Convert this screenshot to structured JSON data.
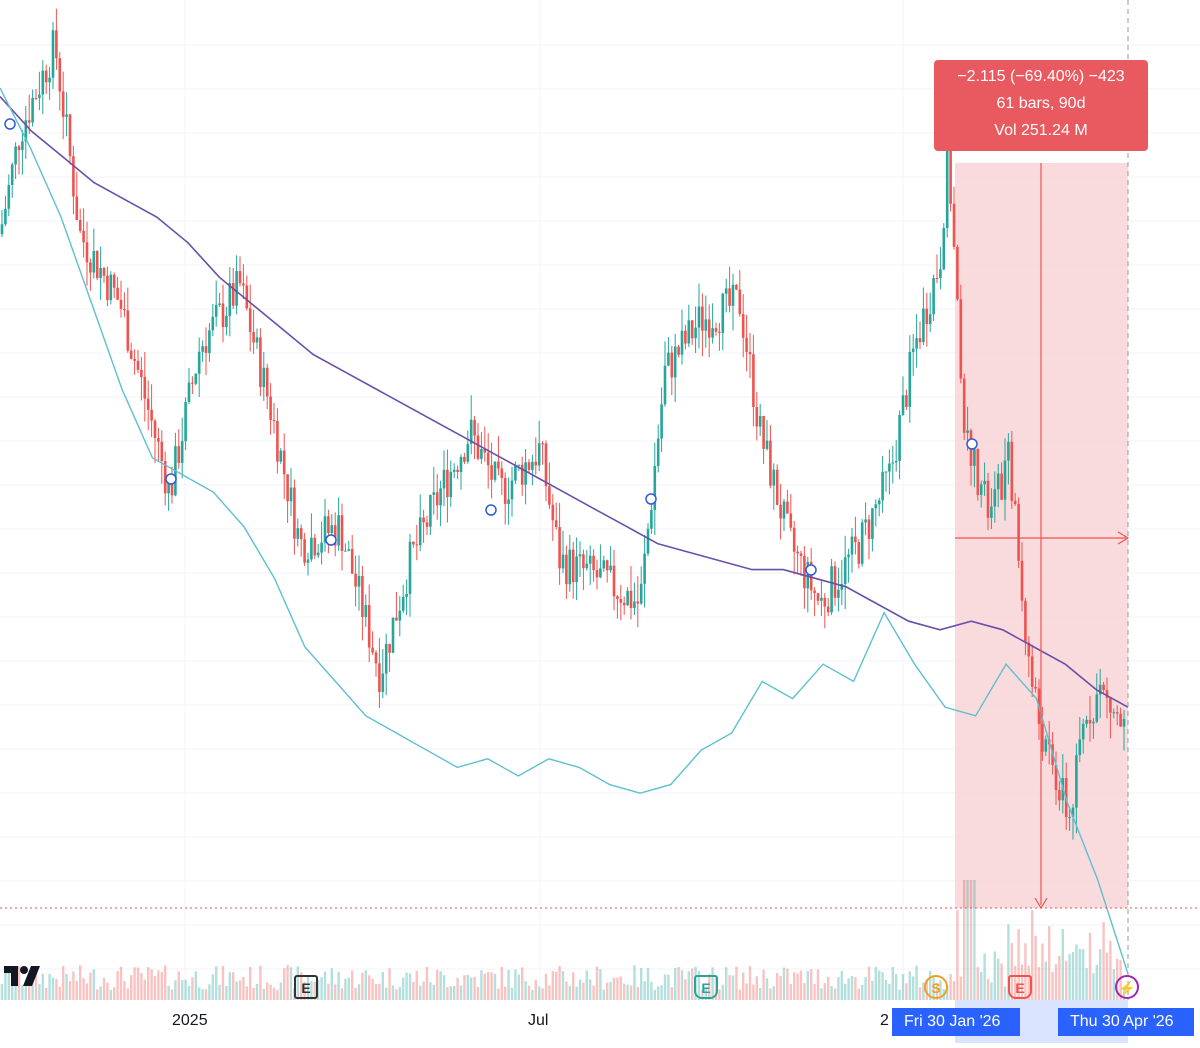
{
  "measure": {
    "line1": "−2.115 (−69.40%) −423",
    "line2": "61 bars, 90d",
    "line3": "Vol 251.24 M"
  },
  "x_axis": {
    "label_2025": "2025",
    "label_jul": "Jul",
    "label_2026_partial": "2",
    "badge_start": "Fri 30 Jan '26",
    "badge_end": "Thu 30 Apr '26"
  },
  "markers": {
    "earnings_1": "E",
    "earnings_2": "E",
    "split": "S"
  },
  "colors": {
    "up": "#26a69a",
    "down": "#ef5350",
    "ma_fast": "#5fbfcf",
    "ma_slow": "#6a4fa8",
    "measure_fill": "#f8cfd1",
    "measure_box": "#e85a60",
    "badge": "#2962ff"
  },
  "chart_data": {
    "type": "candlestick",
    "note_scale": "unlabeled price axis (relative values 0-100)",
    "x_labels": [
      "2025",
      "Jul",
      "2"
    ],
    "ma_fast": [
      95,
      88,
      80,
      70,
      60,
      52,
      50,
      48,
      44,
      38,
      30,
      26,
      22,
      20,
      18,
      16,
      17,
      15,
      17,
      16,
      14,
      13,
      14,
      18,
      20,
      26,
      24,
      28,
      26,
      34,
      28,
      23,
      22,
      28,
      24,
      12,
      3,
      -8
    ],
    "ma_slow": [
      94,
      90,
      87,
      84,
      82,
      80,
      77,
      73,
      70,
      67,
      64,
      62,
      60,
      58,
      56,
      54,
      52,
      50,
      48,
      46,
      44,
      42,
      41,
      40,
      39,
      39,
      38,
      37,
      35,
      33,
      32,
      33,
      32,
      30,
      28,
      25,
      23
    ],
    "selection": {
      "start_label": "Fri 30 Jan '26",
      "end_label": "Thu 30 Apr '26",
      "change": "−2.115 (−69.40%) −423",
      "bars": "61 bars, 90d",
      "volume": "Vol 251.24 M"
    }
  }
}
